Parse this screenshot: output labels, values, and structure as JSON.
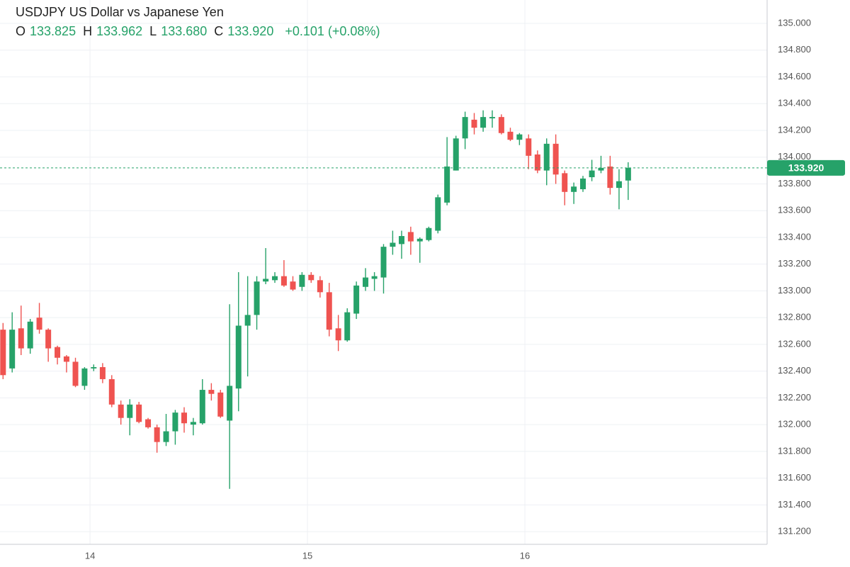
{
  "chart_data": {
    "type": "candlestick",
    "legend": {
      "symbol": "USDJPY US Dollar vs Japanese Yen",
      "items": [
        {
          "label": "O",
          "value": "133.825"
        },
        {
          "label": "H",
          "value": "133.962"
        },
        {
          "label": "L",
          "value": "133.680"
        },
        {
          "label": "C",
          "value": "133.920"
        }
      ],
      "change": "+0.101 (+0.08%)"
    },
    "up_color": "#26a269",
    "down_color": "#ef5350",
    "x": [
      13.6,
      13.642,
      13.683,
      13.725,
      13.767,
      13.808,
      13.85,
      13.892,
      13.933,
      13.975,
      14.017,
      14.058,
      14.1,
      14.142,
      14.183,
      14.225,
      14.267,
      14.308,
      14.35,
      14.392,
      14.433,
      14.475,
      14.517,
      14.558,
      14.6,
      14.642,
      14.683,
      14.725,
      14.767,
      14.808,
      14.85,
      14.892,
      14.933,
      14.975,
      15.017,
      15.058,
      15.1,
      15.142,
      15.183,
      15.225,
      15.267,
      15.308,
      15.35,
      15.392,
      15.433,
      15.475,
      15.517,
      15.558,
      15.6,
      15.642,
      15.683,
      15.725,
      15.767,
      15.808,
      15.85,
      15.892,
      15.933,
      15.975,
      16.017,
      16.058,
      16.1,
      16.142,
      16.183,
      16.225,
      16.267,
      16.308,
      16.35,
      16.392,
      16.433,
      16.475
    ],
    "open": [
      132.71,
      132.42,
      132.72,
      132.57,
      132.8,
      132.71,
      132.58,
      132.51,
      132.47,
      132.29,
      132.42,
      132.43,
      132.34,
      132.15,
      132.05,
      132.15,
      132.04,
      131.98,
      131.87,
      131.95,
      132.09,
      132,
      132.01,
      132.26,
      132.24,
      132.03,
      132.27,
      132.74,
      132.82,
      133.07,
      133.08,
      133.11,
      133.07,
      133.03,
      133.12,
      133.08,
      132.99,
      132.72,
      132.63,
      132.83,
      133.03,
      133.09,
      133.1,
      133.33,
      133.35,
      133.44,
      133.37,
      133.38,
      133.45,
      133.66,
      133.9,
      134.14,
      134.28,
      134.22,
      134.29,
      134.3,
      134.19,
      134.13,
      134.14,
      134.02,
      133.9,
      134.1,
      133.88,
      133.74,
      133.76,
      133.85,
      133.9,
      133.93,
      133.77,
      133.825
    ],
    "high": [
      132.76,
      132.84,
      132.89,
      132.79,
      132.91,
      132.72,
      132.59,
      132.52,
      132.5,
      132.43,
      132.45,
      132.46,
      132.37,
      132.18,
      132.19,
      132.17,
      132.05,
      132,
      132.08,
      132.11,
      132.13,
      132.05,
      132.34,
      132.31,
      132.26,
      132.9,
      133.14,
      133.11,
      133.11,
      133.32,
      133.14,
      133.23,
      133.11,
      133.14,
      133.14,
      133.11,
      133.06,
      132.82,
      132.87,
      133.07,
      133.17,
      133.14,
      133.35,
      133.45,
      133.45,
      133.48,
      133.4,
      133.48,
      133.72,
      134.15,
      134.16,
      134.34,
      134.33,
      134.35,
      134.35,
      134.32,
      134.22,
      134.18,
      134.17,
      134.05,
      134.14,
      134.17,
      133.9,
      133.81,
      133.86,
      133.98,
      134.01,
      134.01,
      133.91,
      133.962
    ],
    "low": [
      132.34,
      132.39,
      132.52,
      132.53,
      132.68,
      132.47,
      132.45,
      132.39,
      132.28,
      132.26,
      132.4,
      132.31,
      132.13,
      132,
      131.92,
      132.01,
      131.97,
      131.79,
      131.84,
      131.85,
      131.94,
      131.92,
      132,
      132.18,
      132.05,
      131.52,
      132.1,
      132.36,
      132.71,
      133.05,
      133.06,
      133.03,
      133,
      133,
      133.06,
      132.95,
      132.66,
      132.55,
      132.62,
      132.79,
      133,
      133,
      132.98,
      133.27,
      133.24,
      133.27,
      133.21,
      133.37,
      133.43,
      133.64,
      133.9,
      134.06,
      134.17,
      134.19,
      134.22,
      134.17,
      134.12,
      134.09,
      133.91,
      133.88,
      133.79,
      133.8,
      133.64,
      133.65,
      133.74,
      133.82,
      133.88,
      133.72,
      133.61,
      133.68
    ],
    "close": [
      132.37,
      132.71,
      132.57,
      132.77,
      132.71,
      132.57,
      132.5,
      132.47,
      132.29,
      132.42,
      132.43,
      132.34,
      132.15,
      132.05,
      132.15,
      132.02,
      131.98,
      131.87,
      131.95,
      132.09,
      132.01,
      132.02,
      132.26,
      132.23,
      132.06,
      132.29,
      132.74,
      132.82,
      133.07,
      133.09,
      133.11,
      133.04,
      133.01,
      133.12,
      133.08,
      132.99,
      132.71,
      132.63,
      132.84,
      133.04,
      133.1,
      133.11,
      133.33,
      133.36,
      133.41,
      133.37,
      133.39,
      133.47,
      133.7,
      133.93,
      134.14,
      134.3,
      134.22,
      134.3,
      134.3,
      134.18,
      134.13,
      134.17,
      134.01,
      133.9,
      134.1,
      133.87,
      133.74,
      133.78,
      133.84,
      133.9,
      133.92,
      133.77,
      133.82,
      133.92
    ],
    "last_price": {
      "value": 133.92,
      "label": "133.920"
    },
    "xlim": [
      13.586,
      17.114
    ],
    "xticks": [
      14,
      15,
      16
    ],
    "ylim": [
      131.105,
      135.175
    ],
    "yticks": [
      {
        "value": 131.2,
        "label": "131.200"
      },
      {
        "value": 131.4,
        "label": "131.400"
      },
      {
        "value": 131.6,
        "label": "131.600"
      },
      {
        "value": 131.8,
        "label": "131.800"
      },
      {
        "value": 132,
        "label": "132.000"
      },
      {
        "value": 132.2,
        "label": "132.200"
      },
      {
        "value": 132.4,
        "label": "132.400"
      },
      {
        "value": 132.6,
        "label": "132.600"
      },
      {
        "value": 132.8,
        "label": "132.800"
      },
      {
        "value": 133,
        "label": "133.000"
      },
      {
        "value": 133.2,
        "label": "133.200"
      },
      {
        "value": 133.4,
        "label": "133.400"
      },
      {
        "value": 133.6,
        "label": "133.600"
      },
      {
        "value": 133.8,
        "label": "133.800"
      },
      {
        "value": 134,
        "label": "134.000"
      },
      {
        "value": 134.2,
        "label": "134.200"
      },
      {
        "value": 134.4,
        "label": "134.400"
      },
      {
        "value": 134.6,
        "label": "134.600"
      },
      {
        "value": 134.8,
        "label": "134.800"
      },
      {
        "value": 135,
        "label": "135.000"
      }
    ],
    "grid": true
  }
}
